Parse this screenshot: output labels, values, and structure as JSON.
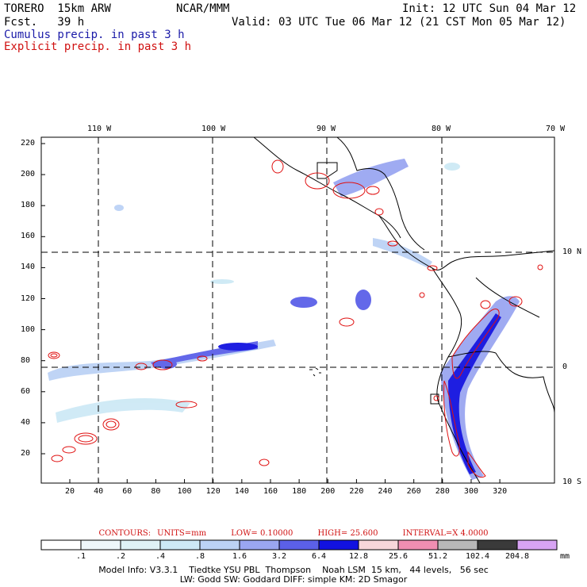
{
  "header": {
    "model": "TORERO  15km ARW",
    "center": "NCAR/MMM",
    "init": "Init: 12 UTC Sun 04 Mar 12",
    "fcst": "Fcst.   39 h",
    "valid": "Valid: 03 UTC Tue 06 Mar 12 (21 CST Mon 05 Mar 12)",
    "cumulus": "Cumulus precip. in past 3 h",
    "explicit": "Explicit precip. in past 3 h"
  },
  "colors": {
    "cumulus_title": "#1a1aa8",
    "explicit_title": "#d01010",
    "contour": "#e01010",
    "coast": "#000000"
  },
  "top_axis": {
    "labels": [
      "110 W",
      "100 W",
      "90 W",
      "80 W",
      "70 W"
    ]
  },
  "right_axis": {
    "labels": [
      "10 N",
      "0",
      "10 S"
    ]
  },
  "left_axis": {
    "ticks": [
      "220",
      "200",
      "180",
      "160",
      "140",
      "120",
      "100",
      "80",
      "60",
      "40",
      "20"
    ]
  },
  "bottom_axis": {
    "ticks": [
      "20",
      "40",
      "60",
      "80",
      "100",
      "120",
      "140",
      "160",
      "180",
      "200",
      "220",
      "240",
      "260",
      "280",
      "300",
      "320"
    ]
  },
  "contours": {
    "label": "CONTOURS:",
    "units": "UNITS=mm",
    "low": "LOW= 0.10000",
    "high": "HIGH= 25.600",
    "interval": "INTERVAL=X  4.0000"
  },
  "colorbar": {
    "thresholds": [
      ".1",
      ".2",
      ".4",
      ".8",
      "1.6",
      "3.2",
      "6.4",
      "12.8",
      "25.6",
      "51.2",
      "102.4",
      "204.8"
    ],
    "unit": "mm",
    "fills": [
      "#ffffff",
      "#eef7fb",
      "#dff3f6",
      "#cde9f5",
      "#bcd2f5",
      "#9aa6f1",
      "#5b60e8",
      "#1212e0",
      "#f8d6da",
      "#f08eb2",
      "#b8b8b8",
      "#3a3a3a",
      "#d8a4f4"
    ]
  },
  "footer": {
    "line1": "Model Info: V3.3.1    Tiedtke YSU PBL  Thompson    Noah LSM  15 km,   44 levels,   56 sec",
    "line2": "LW: Godd SW: Goddard DIFF: simple KM: 2D Smagor"
  }
}
